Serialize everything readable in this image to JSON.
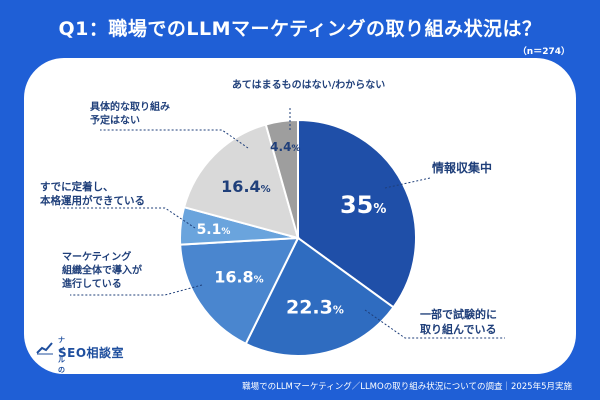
{
  "header": {
    "title": "Q1：職場でのLLMマーケティングの取り組み状況は？",
    "sample": "（n＝274）"
  },
  "footer": {
    "source": "職場でのLLMマーケティング／LLMOの取り組み状況についての調査｜2025年5月実施"
  },
  "logo": {
    "small": "ナイルの",
    "big": "SEO相談室"
  },
  "chart_data": {
    "type": "pie",
    "unit": "%",
    "slices": [
      {
        "label": [
          "情報収集中"
        ],
        "value": 35,
        "color": "#1f4fa8",
        "text_color": "#ffffff"
      },
      {
        "label": [
          "一部で試験的に",
          "取り組んでいる"
        ],
        "value": 22.3,
        "color": "#2f6cc0",
        "text_color": "#ffffff"
      },
      {
        "label": [
          "マーケティング",
          "組織全体で導入が",
          "進行している"
        ],
        "value": 16.8,
        "color": "#4a86cf",
        "text_color": "#ffffff"
      },
      {
        "label": [
          "すでに定着し、",
          "本格運用ができている"
        ],
        "value": 5.1,
        "color": "#6aa4dd",
        "text_color": "#ffffff"
      },
      {
        "label": [
          "具体的な取り組み",
          "予定はない"
        ],
        "value": 16.4,
        "color": "#d9d9d9",
        "text_color": "#1f3f7a"
      },
      {
        "label": [
          "あてはまるものはない/わからない"
        ],
        "value": 4.4,
        "color": "#9e9e9e",
        "text_color": "#1f3f7a"
      }
    ]
  }
}
